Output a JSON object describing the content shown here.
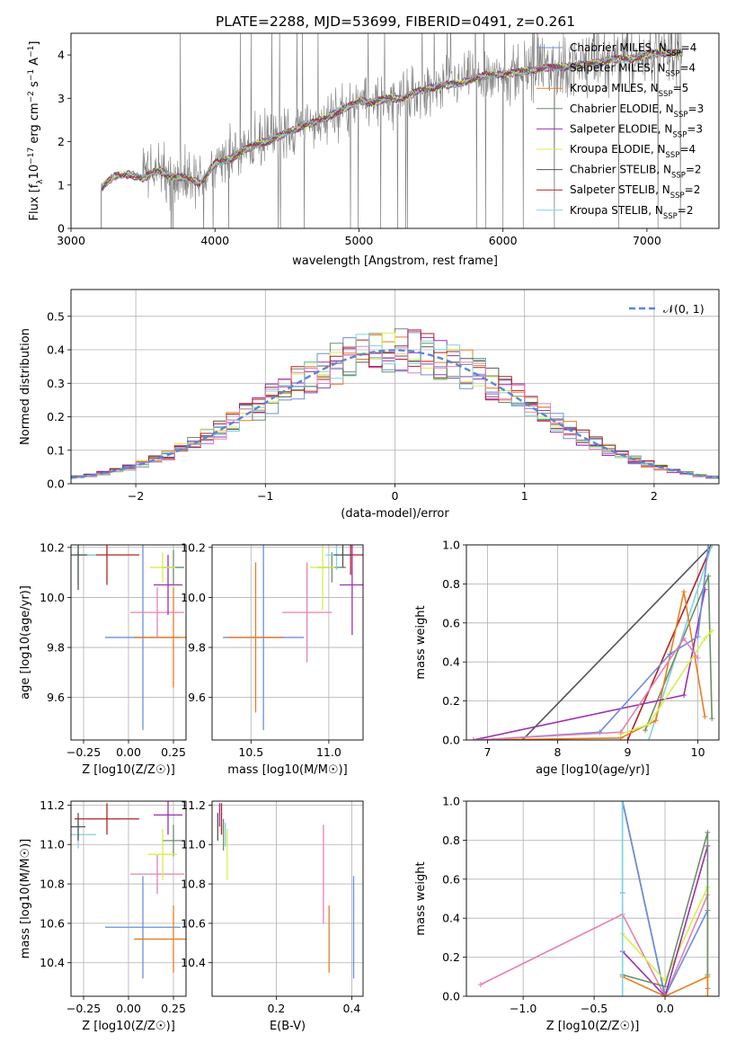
{
  "figure": {
    "title": "PLATE=2288, MJD=53699, FIBERID=0491, z=0.261"
  },
  "model_colors": {
    "Chabrier MILES": "#6b8fe0",
    "Salpeter MILES": "#8e44ad",
    "Kroupa MILES": "#e67e22",
    "Chabrier ELODIE": "#6b8e6b",
    "Salpeter ELODIE": "#9b30b0",
    "Kroupa ELODIE": "#d4ef4a",
    "Chabrier STELIB": "#555555",
    "Salpeter STELIB": "#b22222",
    "Kroupa STELIB": "#7fd3dd",
    "Pink": "#e582b4"
  },
  "chart_data": [
    {
      "id": "spectrum",
      "type": "line",
      "title": "PLATE=2288, MJD=53699, FIBERID=0491, z=0.261",
      "xlabel": "wavelength [Angstrom, rest frame]",
      "ylabel": "Flux [f_λ 10^-17 erg cm^-2 s^-1 A^-1]",
      "xlim": [
        3000,
        7500
      ],
      "ylim": [
        0,
        4.5
      ],
      "xticks": [
        3000,
        4000,
        5000,
        6000,
        7000
      ],
      "yticks": [
        0,
        1,
        2,
        3,
        4
      ],
      "legend": [
        {
          "label": "Chabrier MILES, N_SSP=4",
          "color": "#6b8fe0"
        },
        {
          "label": "Salpeter MILES, N_SSP=4",
          "color": "#8e44ad"
        },
        {
          "label": "Kroupa MILES, N_SSP=5",
          "color": "#e67e22"
        },
        {
          "label": "Chabrier ELODIE, N_SSP=3",
          "color": "#6b8e6b"
        },
        {
          "label": "Salpeter ELODIE, N_SSP=3",
          "color": "#9b30b0"
        },
        {
          "label": "Kroupa ELODIE, N_SSP=4",
          "color": "#d4ef4a"
        },
        {
          "label": "Chabrier STELIB, N_SSP=2",
          "color": "#555555"
        },
        {
          "label": "Salpeter STELIB, N_SSP=2",
          "color": "#b22222"
        },
        {
          "label": "Kroupa STELIB, N_SSP=2",
          "color": "#7fd3dd"
        }
      ],
      "model_curve": {
        "x": [
          3200,
          3300,
          3400,
          3500,
          3600,
          3700,
          3800,
          3900,
          4000,
          4100,
          4200,
          4300,
          4400,
          4500,
          4600,
          4700,
          4800,
          4900,
          5000,
          5100,
          5200,
          5300,
          5400,
          5500,
          5600,
          5700,
          5800,
          5900,
          6000,
          6100,
          6200,
          6300,
          6400,
          6500,
          6600,
          6700,
          6800,
          6900,
          7000,
          7100
        ],
        "y": [
          0.9,
          1.2,
          1.25,
          1.15,
          1.35,
          1.2,
          1.15,
          1.05,
          1.5,
          1.6,
          1.8,
          1.95,
          2.05,
          2.2,
          2.35,
          2.45,
          2.6,
          2.75,
          2.95,
          2.9,
          3.0,
          3.0,
          3.15,
          3.25,
          3.3,
          3.35,
          3.45,
          3.55,
          3.55,
          3.6,
          3.65,
          3.7,
          3.72,
          3.75,
          3.8,
          3.85,
          3.9,
          3.92,
          4.0,
          4.05
        ]
      }
    },
    {
      "id": "residuals",
      "type": "bar",
      "xlabel": "(data-model)/error",
      "ylabel": "Normed distribution",
      "xlim": [
        -2.5,
        2.5
      ],
      "ylim": [
        0,
        0.58
      ],
      "xticks": [
        -2,
        -1,
        0,
        1,
        2
      ],
      "yticks": [
        0.0,
        0.1,
        0.2,
        0.3,
        0.4,
        0.5
      ],
      "legend": [
        {
          "label": "𝒩(0, 1)",
          "color": "#5b86d6"
        }
      ],
      "bin_width": 0.1
    },
    {
      "id": "age_vs_Z",
      "type": "scatter",
      "xlabel": "Z [log10(Z/Z☉)]",
      "ylabel": "age [log10(age/yr)]",
      "xlim": [
        -0.32,
        0.32
      ],
      "ylim": [
        9.43,
        10.21
      ],
      "xticks": [
        -0.25,
        0.0,
        0.25
      ],
      "yticks": [
        9.6,
        9.8,
        10.0,
        10.2
      ],
      "points": [
        {
          "x": 0.08,
          "y": 9.84,
          "xerr": 0.21,
          "yerr": 0.37,
          "color": "#6b8fe0"
        },
        {
          "x": 0.25,
          "y": 9.84,
          "xerr": 0.22,
          "yerr": 0.2,
          "color": "#e67e22"
        },
        {
          "x": 0.16,
          "y": 9.94,
          "xerr": 0.15,
          "yerr": 0.1,
          "color": "#e582b4"
        },
        {
          "x": 0.22,
          "y": 10.05,
          "xerr": 0.08,
          "yerr": 0.12,
          "color": "#9b30b0"
        },
        {
          "x": 0.25,
          "y": 10.12,
          "xerr": 0.06,
          "yerr": 0.07,
          "color": "#6b8e6b"
        },
        {
          "x": 0.19,
          "y": 10.12,
          "xerr": 0.07,
          "yerr": 0.06,
          "color": "#d4ef4a"
        },
        {
          "x": -0.12,
          "y": 10.17,
          "xerr": 0.18,
          "yerr": 0.12,
          "color": "#b22222"
        },
        {
          "x": -0.28,
          "y": 10.17,
          "xerr": 0.1,
          "yerr": 0.12,
          "color": "#7fd3dd"
        },
        {
          "x": -0.28,
          "y": 10.17,
          "xerr": 0.05,
          "yerr": 0.14,
          "color": "#555555"
        }
      ]
    },
    {
      "id": "age_vs_mass",
      "type": "scatter",
      "xlabel": "mass [log10(M/M☉)]",
      "ylabel": "",
      "xlim": [
        10.25,
        11.22
      ],
      "ylim": [
        9.43,
        10.21
      ],
      "xticks": [
        10.5,
        11.0
      ],
      "yticks": [
        9.6,
        9.8,
        10.0,
        10.2
      ],
      "points": [
        {
          "x": 10.58,
          "y": 9.84,
          "xerr": 0.26,
          "yerr": 0.37,
          "color": "#6b8fe0"
        },
        {
          "x": 10.53,
          "y": 9.84,
          "xerr": 0.18,
          "yerr": 0.3,
          "color": "#e67e22"
        },
        {
          "x": 10.86,
          "y": 9.94,
          "xerr": 0.16,
          "yerr": 0.2,
          "color": "#e582b4"
        },
        {
          "x": 11.15,
          "y": 10.05,
          "xerr": 0.08,
          "yerr": 0.2,
          "color": "#9b30b0"
        },
        {
          "x": 11.02,
          "y": 10.12,
          "xerr": 0.09,
          "yerr": 0.06,
          "color": "#6b8e6b"
        },
        {
          "x": 10.96,
          "y": 10.12,
          "xerr": 0.08,
          "yerr": 0.17,
          "color": "#d4ef4a"
        },
        {
          "x": 11.14,
          "y": 10.17,
          "xerr": 0.08,
          "yerr": 0.08,
          "color": "#b22222"
        },
        {
          "x": 11.05,
          "y": 10.17,
          "xerr": 0.07,
          "yerr": 0.06,
          "color": "#7fd3dd"
        },
        {
          "x": 11.09,
          "y": 10.17,
          "xerr": 0.06,
          "yerr": 0.05,
          "color": "#555555"
        }
      ]
    },
    {
      "id": "mass_weight_vs_age",
      "type": "line",
      "xlabel": "age [log10(age/yr)]",
      "ylabel": "mass weight",
      "xlim": [
        6.7,
        10.3
      ],
      "ylim": [
        0,
        1
      ],
      "xticks": [
        7,
        8,
        9,
        10
      ],
      "yticks": [
        0.0,
        0.2,
        0.4,
        0.6,
        0.8,
        1.0
      ],
      "series": [
        {
          "color": "#555555",
          "x": [
            7.5,
            10.2
          ],
          "y": [
            0.0,
            1.0
          ]
        },
        {
          "color": "#b22222",
          "x": [
            9.0,
            10.2
          ],
          "y": [
            0.0,
            1.0
          ]
        },
        {
          "color": "#7fd3dd",
          "x": [
            9.3,
            10.2
          ],
          "y": [
            0.0,
            1.0
          ]
        },
        {
          "color": "#6b8e6b",
          "x": [
            9.25,
            10.15,
            10.2
          ],
          "y": [
            0.05,
            0.84,
            0.11
          ]
        },
        {
          "color": "#e67e22",
          "x": [
            6.9,
            8.9,
            9.4,
            9.8,
            10.1
          ],
          "y": [
            0.0,
            0.01,
            0.1,
            0.76,
            0.12
          ]
        },
        {
          "color": "#9b30b0",
          "x": [
            6.8,
            9.8,
            10.1
          ],
          "y": [
            0.0,
            0.23,
            0.77
          ]
        },
        {
          "color": "#6b8fe0",
          "x": [
            6.9,
            8.6,
            9.6,
            10.0,
            10.15
          ],
          "y": [
            0.0,
            0.04,
            0.44,
            0.53,
            1.0
          ]
        },
        {
          "color": "#d4ef4a",
          "x": [
            8.9,
            9.3,
            10.1,
            10.2
          ],
          "y": [
            0.03,
            0.08,
            0.52,
            0.56
          ]
        },
        {
          "color": "#e582b4",
          "x": [
            6.8,
            8.9,
            9.8,
            10.0
          ],
          "y": [
            0.0,
            0.04,
            0.52,
            0.42
          ]
        }
      ]
    },
    {
      "id": "mass_vs_Z",
      "type": "scatter",
      "xlabel": "Z [log10(Z/Z☉)]",
      "ylabel": "mass [log10(M/M☉)]",
      "xlim": [
        -0.32,
        0.32
      ],
      "ylim": [
        10.23,
        11.22
      ],
      "xticks": [
        -0.25,
        0.0,
        0.25
      ],
      "yticks": [
        10.4,
        10.6,
        10.8,
        11.0,
        11.2
      ],
      "points": [
        {
          "x": 0.08,
          "y": 10.58,
          "xerr": 0.21,
          "yerr": 0.26,
          "color": "#6b8fe0"
        },
        {
          "x": 0.25,
          "y": 10.52,
          "xerr": 0.22,
          "yerr": 0.17,
          "color": "#e67e22"
        },
        {
          "x": 0.16,
          "y": 10.85,
          "xerr": 0.15,
          "yerr": 0.1,
          "color": "#e582b4"
        },
        {
          "x": 0.22,
          "y": 11.15,
          "xerr": 0.08,
          "yerr": 0.1,
          "color": "#9b30b0"
        },
        {
          "x": 0.25,
          "y": 11.02,
          "xerr": 0.06,
          "yerr": 0.08,
          "color": "#6b8e6b"
        },
        {
          "x": 0.19,
          "y": 10.95,
          "xerr": 0.08,
          "yerr": 0.13,
          "color": "#d4ef4a"
        },
        {
          "x": -0.12,
          "y": 11.13,
          "xerr": 0.18,
          "yerr": 0.08,
          "color": "#b22222"
        },
        {
          "x": -0.28,
          "y": 11.05,
          "xerr": 0.1,
          "yerr": 0.07,
          "color": "#7fd3dd"
        },
        {
          "x": -0.28,
          "y": 11.09,
          "xerr": 0.04,
          "yerr": 0.07,
          "color": "#555555"
        }
      ]
    },
    {
      "id": "mass_vs_ebv",
      "type": "scatter",
      "xlabel": "E(B-V)",
      "ylabel": "",
      "xlim": [
        0.03,
        0.43
      ],
      "ylim": [
        10.23,
        11.22
      ],
      "xticks": [
        0.2,
        0.4
      ],
      "yticks": [
        10.4,
        10.6,
        10.8,
        11.0,
        11.2
      ],
      "points": [
        {
          "x": 0.405,
          "y": 10.58,
          "xerr": 0.0,
          "yerr": 0.26,
          "color": "#6b8fe0"
        },
        {
          "x": 0.34,
          "y": 10.52,
          "xerr": 0.0,
          "yerr": 0.17,
          "color": "#e67e22"
        },
        {
          "x": 0.325,
          "y": 10.85,
          "xerr": 0.0,
          "yerr": 0.25,
          "color": "#e582b4"
        },
        {
          "x": 0.05,
          "y": 11.15,
          "xerr": 0.0,
          "yerr": 0.06,
          "color": "#9b30b0"
        },
        {
          "x": 0.06,
          "y": 11.05,
          "xerr": 0.0,
          "yerr": 0.08,
          "color": "#6b8e6b"
        },
        {
          "x": 0.07,
          "y": 10.95,
          "xerr": 0.0,
          "yerr": 0.13,
          "color": "#d4ef4a"
        },
        {
          "x": 0.055,
          "y": 11.13,
          "xerr": 0.0,
          "yerr": 0.08,
          "color": "#b22222"
        },
        {
          "x": 0.065,
          "y": 11.05,
          "xerr": 0.0,
          "yerr": 0.06,
          "color": "#7fd3dd"
        },
        {
          "x": 0.045,
          "y": 11.09,
          "xerr": 0.0,
          "yerr": 0.07,
          "color": "#555555"
        }
      ]
    },
    {
      "id": "mass_weight_vs_Z",
      "type": "line",
      "xlabel": "Z [log10(Z/Z☉)]",
      "ylabel": "mass weight",
      "xlim": [
        -1.4,
        0.38
      ],
      "ylim": [
        0,
        1
      ],
      "xticks": [
        -1.0,
        -0.5,
        0.0
      ],
      "yticks": [
        0.0,
        0.2,
        0.4,
        0.6,
        0.8,
        1.0
      ],
      "series": [
        {
          "color": "#e582b4",
          "x": [
            -1.3,
            -0.3,
            0.0,
            0.3
          ],
          "y": [
            0.06,
            0.42,
            0.0,
            0.52
          ]
        },
        {
          "color": "#555555",
          "x": [
            -0.3,
            0.0
          ],
          "y": [
            1.0,
            0.0
          ]
        },
        {
          "color": "#6b8fe0",
          "x": [
            -0.3,
            -0.3,
            0.0,
            0.3,
            0.3
          ],
          "y": [
            0.53,
            1.0,
            0.0,
            0.44,
            0.04
          ]
        },
        {
          "color": "#d4ef4a",
          "x": [
            -0.3,
            0.0,
            0.3,
            0.3
          ],
          "y": [
            0.32,
            0.08,
            0.56,
            0.0
          ]
        },
        {
          "color": "#9b30b0",
          "x": [
            -0.3,
            0.0,
            0.3
          ],
          "y": [
            0.23,
            0.0,
            0.77
          ]
        },
        {
          "color": "#6b8e6b",
          "x": [
            -0.3,
            0.0,
            0.3,
            0.3
          ],
          "y": [
            0.11,
            0.05,
            0.84,
            0.11
          ]
        },
        {
          "color": "#e67e22",
          "x": [
            -0.3,
            0.0,
            0.3,
            0.3
          ],
          "y": [
            0.1,
            0.0,
            0.1,
            0.0
          ]
        },
        {
          "color": "#7fd3dd",
          "x": [
            -0.3,
            -0.3
          ],
          "y": [
            0.0,
            1.0
          ]
        }
      ]
    }
  ]
}
